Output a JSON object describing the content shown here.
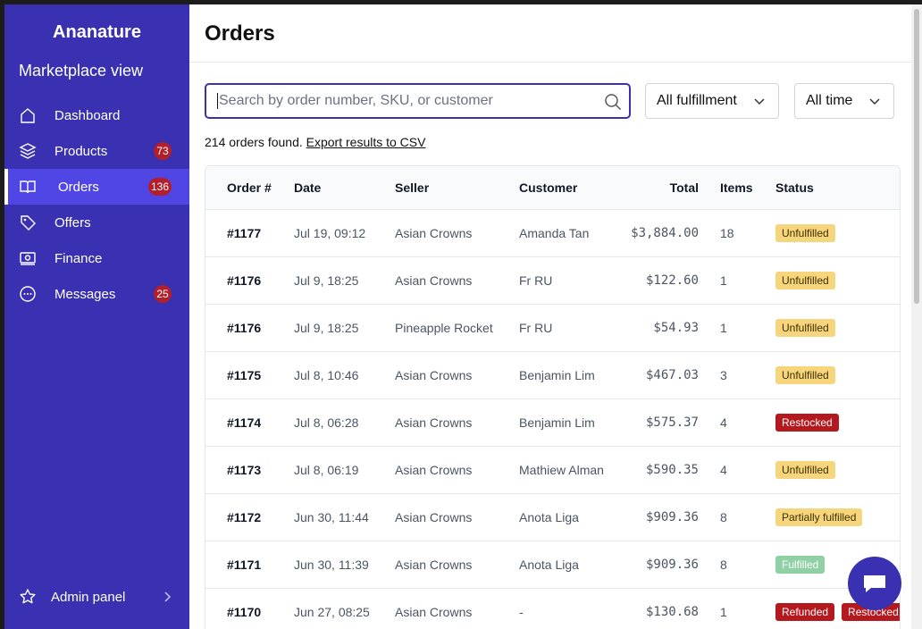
{
  "sidebar": {
    "brand": "Ananature",
    "subtitle": "Marketplace view",
    "nav": [
      {
        "label": "Dashboard"
      },
      {
        "label": "Products",
        "badge": 73
      },
      {
        "label": "Orders",
        "badge": 136,
        "active": true
      },
      {
        "label": "Offers"
      },
      {
        "label": "Finance"
      },
      {
        "label": "Messages",
        "badge": 25
      }
    ],
    "footer_link": "Admin panel"
  },
  "header": {
    "title": "Orders"
  },
  "search": {
    "placeholder": "Search by order number, SKU, or customer"
  },
  "filters": [
    "All fulfillment",
    "All time"
  ],
  "summary": {
    "count_text": "214 orders found.",
    "link": "Export results to CSV"
  },
  "table": {
    "columns": [
      "Order #",
      "Date",
      "Seller",
      "Customer",
      "Total",
      "Items",
      "Status"
    ],
    "rows": [
      [
        "#1177",
        "Jul 19, 09:12",
        "Asian Crowns",
        "Amanda Tan",
        "$3,884.00",
        18,
        [
          {
            "label": "Unfulfilled",
            "color": "#f7d57c",
            "text_color": "#3d3000"
          }
        ]
      ],
      [
        "#1176",
        "Jul 9, 18:25",
        "Asian Crowns",
        "Fr RU",
        "$122.60",
        1,
        [
          {
            "label": "Unfulfilled",
            "color": "#f7d57c",
            "text_color": "#3d3000"
          }
        ]
      ],
      [
        "#1176",
        "Jul 9, 18:25",
        "Pineapple Rocket",
        "Fr RU",
        "$54.93",
        1,
        [
          {
            "label": "Unfulfilled",
            "color": "#f7d57c",
            "text_color": "#3d3000"
          }
        ]
      ],
      [
        "#1175",
        "Jul 8, 10:46",
        "Asian Crowns",
        "Benjamin Lim",
        "$467.03",
        3,
        [
          {
            "label": "Unfulfilled",
            "color": "#f7d57c",
            "text_color": "#3d3000"
          }
        ]
      ],
      [
        "#1174",
        "Jul 8, 06:28",
        "Asian Crowns",
        "Benjamin Lim",
        "$575.37",
        4,
        [
          {
            "label": "Restocked",
            "color": "#b4191f",
            "text_color": "#ffffff"
          }
        ]
      ],
      [
        "#1173",
        "Jul 8, 06:19",
        "Asian Crowns",
        "Mathiew Alman",
        "$590.35",
        4,
        [
          {
            "label": "Unfulfilled",
            "color": "#f7d57c",
            "text_color": "#3d3000"
          }
        ]
      ],
      [
        "#1172",
        "Jun 30, 11:44",
        "Asian Crowns",
        "Anota Liga",
        "$909.36",
        8,
        [
          {
            "label": "Partially fulfilled",
            "color": "#f7d57c",
            "text_color": "#3d3000"
          }
        ]
      ],
      [
        "#1171",
        "Jun 30, 11:39",
        "Asian Crowns",
        "Anota Liga",
        "$909.36",
        8,
        [
          {
            "label": "Fulfilled",
            "color": "#8fd0a4",
            "text_color": "#ffffff"
          }
        ]
      ],
      [
        "#1170",
        "Jun 27, 08:25",
        "Asian Crowns",
        "-",
        "$130.68",
        1,
        [
          {
            "label": "Refunded",
            "color": "#b4191f",
            "text_color": "#ffffff"
          },
          {
            "label": "Restocked",
            "color": "#b4191f",
            "text_color": "#ffffff"
          }
        ]
      ]
    ]
  }
}
